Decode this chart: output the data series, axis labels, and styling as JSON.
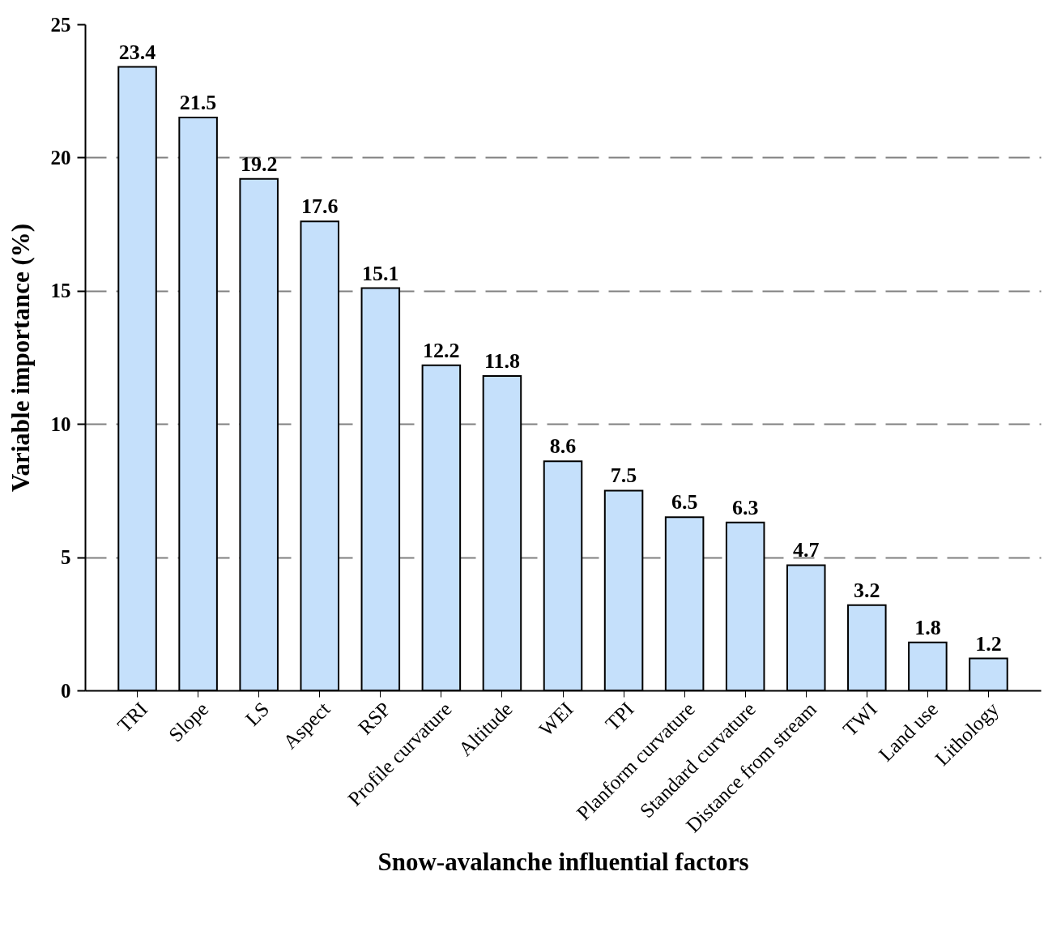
{
  "chart_data": {
    "type": "bar",
    "xlabel": "Snow-avalanche influential factors",
    "ylabel": "Variable importance (%)",
    "categories": [
      "TRI",
      "Slope",
      "LS",
      "Aspect",
      "RSP",
      "Profile curvature",
      "Altitude",
      "WEI",
      "TPI",
      "Planform curvature",
      "Standard curvature",
      "Distance from stream",
      "TWI",
      "Land use",
      "Lithology"
    ],
    "values": [
      23.4,
      21.5,
      19.2,
      17.6,
      15.1,
      12.2,
      11.8,
      8.6,
      7.5,
      6.5,
      6.3,
      4.7,
      3.2,
      1.8,
      1.2
    ],
    "color": "#c5e0fb",
    "ylim": [
      0,
      25
    ],
    "yticks": [
      0,
      5,
      10,
      15,
      20,
      25
    ],
    "grid": "y",
    "data_labels": true
  }
}
